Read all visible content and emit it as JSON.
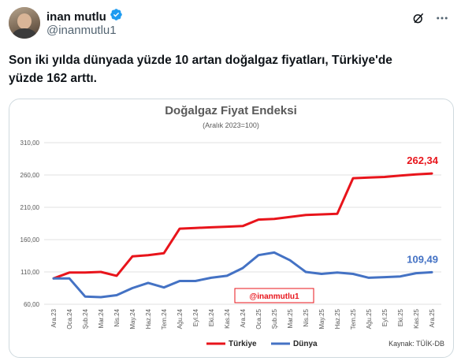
{
  "author": {
    "name": "inan mutlu",
    "handle": "@inanmutlu1",
    "verified": true
  },
  "tweet": {
    "text_line1": "Son iki yılda dünyada yüzde 10 artan doğalgaz fiyatları, Türkiye'de",
    "text_line2": "yüzde 162 arttı."
  },
  "icons": {
    "verified": "verified-badge-icon",
    "grok": "grok-icon",
    "more": "more-options-icon"
  },
  "chart_data": {
    "type": "line",
    "title": "Doğalgaz Fiyat Endeksi",
    "subtitle": "(Aralık 2023=100)",
    "ylim": [
      60,
      310
    ],
    "yticks": [
      "310,00",
      "260,00",
      "210,00",
      "160,00",
      "110,00",
      "60,00"
    ],
    "ytick_values": [
      310,
      260,
      210,
      160,
      110,
      60
    ],
    "categories": [
      "Ara.23",
      "Oca.24",
      "Şub.24",
      "Mar.24",
      "Nis.24",
      "May.24",
      "Haz.24",
      "Tem.24",
      "Ağu.24",
      "Eyl.24",
      "Eki.24",
      "Kas.24",
      "Ara.24",
      "Oca.25",
      "Şub.25",
      "Mar.25",
      "Nis.25",
      "May.25",
      "Haz.25",
      "Tem.25",
      "Ağu.25",
      "Eyl.25",
      "Eki.25",
      "Kas.25",
      "Ara.25"
    ],
    "xtick_labels": [
      "Ara.23",
      "Şub.24",
      "Nis.24",
      "Haz.24",
      "Ağu.24",
      "Eki.24",
      "Ara.24",
      "Şub.25",
      "Nis.25",
      "Haz.25",
      "Ağu.25",
      "Eki.25",
      "Ara.25"
    ],
    "xtick_labels_offset": [
      "Oca.24",
      "Mar.24",
      "May.24",
      "Tem.24",
      "Eyl.24",
      "Kas.24",
      "Oca.25",
      "Mar.25",
      "May.25",
      "Tem.25",
      "Eyl.25",
      "Kas.25"
    ],
    "series": [
      {
        "name": "Türkiye",
        "color": "#e8141b",
        "values": [
          100,
          109,
          109,
          110,
          104,
          134,
          136,
          139,
          177,
          178,
          179,
          180,
          181,
          191,
          192,
          195,
          198,
          199,
          200,
          255,
          256,
          257,
          259,
          261,
          262.34
        ],
        "end_label": "262,34"
      },
      {
        "name": "Dünya",
        "color": "#4472c4",
        "values": [
          100,
          100,
          72,
          71,
          74,
          85,
          93,
          86,
          96,
          96,
          101,
          104,
          116,
          136,
          140,
          128,
          110,
          107,
          109,
          107,
          101,
          102,
          103,
          108,
          109.49
        ],
        "end_label": "109,49"
      }
    ],
    "watermark": "@inanmutlu1",
    "source": "Kaynak: TÜİK-DB",
    "grid": true,
    "legend_position": "bottom-left"
  }
}
